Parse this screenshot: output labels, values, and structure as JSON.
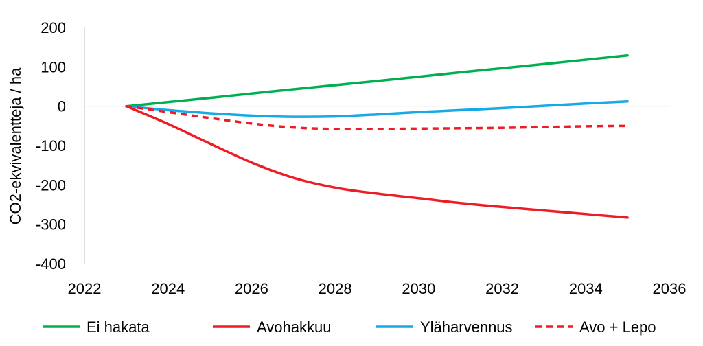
{
  "chart_data": {
    "type": "line",
    "ylabel": "CO2-ekvivalentteja / ha",
    "xlim": [
      2022,
      2036
    ],
    "ylim": [
      -400,
      200
    ],
    "x_ticks": [
      2022,
      2024,
      2026,
      2028,
      2030,
      2032,
      2034,
      2036
    ],
    "y_ticks": [
      200,
      100,
      0,
      -100,
      -200,
      -300,
      -400
    ],
    "grid": false,
    "legend_position": "bottom",
    "series": [
      {
        "name": "Ei hakata",
        "color": "#00b050",
        "dash": false,
        "points": [
          [
            2023,
            0
          ],
          [
            2025,
            21
          ],
          [
            2027,
            43
          ],
          [
            2029,
            64
          ],
          [
            2031,
            86
          ],
          [
            2033,
            107
          ],
          [
            2035,
            129
          ]
        ]
      },
      {
        "name": "Avohakkuu",
        "color": "#ee1c25",
        "dash": false,
        "points": [
          [
            2023,
            0
          ],
          [
            2024,
            -45
          ],
          [
            2025,
            -95
          ],
          [
            2026,
            -143
          ],
          [
            2027,
            -182
          ],
          [
            2028,
            -207
          ],
          [
            2029,
            -222
          ],
          [
            2030,
            -234
          ],
          [
            2031,
            -246
          ],
          [
            2032,
            -256
          ],
          [
            2033,
            -265
          ],
          [
            2034,
            -274
          ],
          [
            2035,
            -283
          ]
        ]
      },
      {
        "name": "Yläharvennus",
        "color": "#16a9e6",
        "dash": false,
        "points": [
          [
            2023,
            0
          ],
          [
            2024,
            -10
          ],
          [
            2025,
            -18
          ],
          [
            2026,
            -24
          ],
          [
            2027,
            -27
          ],
          [
            2028,
            -26
          ],
          [
            2029,
            -21
          ],
          [
            2030,
            -15
          ],
          [
            2031,
            -10
          ],
          [
            2032,
            -5
          ],
          [
            2033,
            1
          ],
          [
            2034,
            7
          ],
          [
            2035,
            12
          ]
        ]
      },
      {
        "name": "Avo + Lepo",
        "color": "#ee1c25",
        "dash": true,
        "points": [
          [
            2023,
            0
          ],
          [
            2024,
            -15
          ],
          [
            2025,
            -30
          ],
          [
            2026,
            -44
          ],
          [
            2027,
            -54
          ],
          [
            2028,
            -58
          ],
          [
            2029,
            -58
          ],
          [
            2030,
            -57
          ],
          [
            2031,
            -56
          ],
          [
            2032,
            -55
          ],
          [
            2033,
            -53
          ],
          [
            2034,
            -51
          ],
          [
            2035,
            -50
          ]
        ]
      }
    ]
  }
}
